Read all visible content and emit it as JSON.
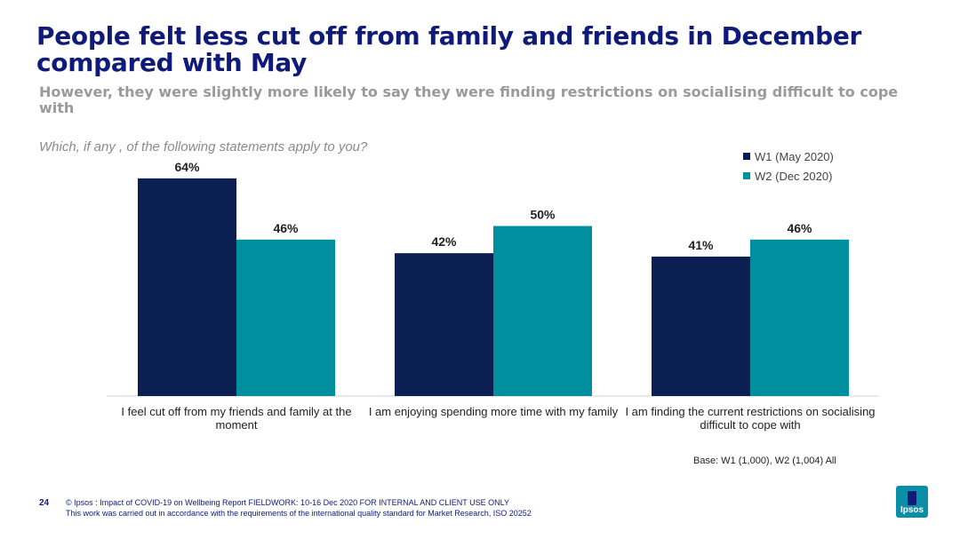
{
  "header": {
    "title": "People felt less cut off from family and friends in December compared with May",
    "subtitle": "However, they were slightly more likely to say they were finding restrictions on socialising difficult to cope with",
    "question": "Which, if any , of the following statements apply to you?"
  },
  "legend": [
    {
      "label": "W1 (May 2020)",
      "color": "#0b1f52"
    },
    {
      "label": "W2 (Dec 2020)",
      "color": "#008f9e"
    }
  ],
  "chart_data": {
    "type": "bar",
    "categories": [
      "I feel cut off from my friends and family at the moment",
      "I am enjoying spending more time with my family",
      "I am finding the current restrictions on socialising difficult to cope with"
    ],
    "series": [
      {
        "name": "W1 (May 2020)",
        "values": [
          64,
          42,
          41
        ],
        "labels": [
          "64%",
          "42%",
          "41%"
        ],
        "color": "#0b1f52"
      },
      {
        "name": "W2 (Dec 2020)",
        "values": [
          46,
          50,
          46
        ],
        "labels": [
          "46%",
          "50%",
          "46%"
        ],
        "color": "#008f9e"
      }
    ],
    "ylim": [
      0,
      100
    ],
    "legend_position": "top-right",
    "grid": false
  },
  "base_note": "Base: W1 (1,000), W2 (1,004) All",
  "footer": {
    "page_number": "24",
    "line1": "© Ipsos : Impact of COVID-19 on Wellbeing Report FIELDWORK: 10-16 Dec 2020 FOR INTERNAL AND CLIENT USE ONLY",
    "line2": "This work was carried out in accordance with the requirements of the international quality standard for Market Research, ISO 20252",
    "logo_text": "Ipsos"
  }
}
